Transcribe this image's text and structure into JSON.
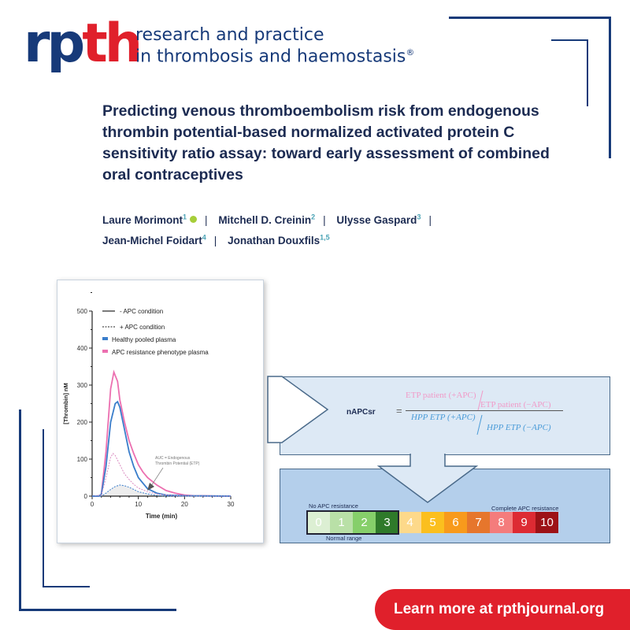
{
  "journal": {
    "logo_rp": "rp",
    "logo_th": "th",
    "name_line1": "research and practice",
    "name_line2": "in thrombosis and haemostasis",
    "registered": "®"
  },
  "article": {
    "title": "Predicting venous thromboembolism risk from endogenous thrombin potential-based normalized activated protein C sensitivity ratio assay: toward early assessment of combined oral contraceptives",
    "authors": [
      {
        "name": "Laure Morimont",
        "aff": "1",
        "orcid": true
      },
      {
        "name": "Mitchell D. Creinin",
        "aff": "2"
      },
      {
        "name": "Ulysse Gaspard",
        "aff": "3"
      },
      {
        "name": "Jean-Michel Foidart",
        "aff": "4"
      },
      {
        "name": "Jonathan Douxfils",
        "aff": "1,5"
      }
    ],
    "separator": "|"
  },
  "chart_data": {
    "type": "line",
    "xlabel": "Time (min)",
    "ylabel": "[Thrombin] nM",
    "xlim": [
      0,
      30
    ],
    "ylim": [
      0,
      500
    ],
    "xticks": [
      0,
      10,
      20,
      30
    ],
    "yticks": [
      0,
      100,
      200,
      300,
      400,
      500
    ],
    "legend_position": "top-left",
    "legend": [
      "- APC condition",
      "+ APC condition",
      "Healthy pooled plasma",
      "APC resistance phenotype plasma"
    ],
    "annotation": [
      "AUC = Endogenous",
      "Thrombin Potential (ETP)"
    ],
    "series": [
      {
        "plasma": "APC resistance phenotype plasma",
        "condition": "- APC condition",
        "color": "#ec6fb0",
        "dash": false,
        "x": [
          0,
          1.5,
          2,
          3,
          4,
          4.7,
          5.5,
          6,
          7,
          8,
          9,
          10,
          11,
          12,
          14,
          16,
          18,
          20,
          22,
          30
        ],
        "y": [
          0,
          0,
          5,
          120,
          290,
          335,
          310,
          260,
          200,
          150,
          115,
          85,
          65,
          50,
          30,
          15,
          8,
          3,
          1,
          0
        ]
      },
      {
        "plasma": "Healthy pooled plasma",
        "condition": "- APC condition",
        "color": "#3a7ecb",
        "dash": false,
        "x": [
          0,
          1.5,
          2,
          3,
          4,
          5,
          5.5,
          6,
          7,
          8,
          9,
          10,
          11,
          12,
          14,
          16,
          20,
          30
        ],
        "y": [
          0,
          0,
          5,
          80,
          200,
          250,
          255,
          240,
          180,
          120,
          80,
          50,
          35,
          20,
          8,
          3,
          1,
          0
        ]
      },
      {
        "plasma": "APC resistance phenotype plasma",
        "condition": "+ APC condition",
        "color": "#d98ac0",
        "dash": true,
        "x": [
          0,
          2,
          3,
          4,
          4.5,
          5,
          6,
          7,
          8,
          9,
          10,
          12,
          14,
          16,
          20,
          30
        ],
        "y": [
          0,
          3,
          50,
          105,
          115,
          110,
          85,
          60,
          45,
          32,
          22,
          12,
          6,
          3,
          0,
          0
        ]
      },
      {
        "plasma": "Healthy pooled plasma",
        "condition": "+ APC condition",
        "color": "#3a7ecb",
        "dash": true,
        "x": [
          0,
          2,
          3,
          4,
          5,
          6,
          7,
          8,
          9,
          10,
          12,
          14,
          16,
          30
        ],
        "y": [
          0,
          0,
          8,
          18,
          26,
          30,
          28,
          24,
          18,
          12,
          6,
          2,
          0,
          0
        ]
      }
    ]
  },
  "formula": {
    "lhs": "nAPCsr",
    "eq": "=",
    "num_top": "ETP patient (+APC)",
    "num_bottom": "ETP patient (−APC)",
    "den_top": "HPP ETP (+APC)",
    "den_bottom": "HPP ETP (−APC)",
    "slash": "/"
  },
  "scale": {
    "left_label": "No APC resistance",
    "right_label": "Complete APC resistance",
    "normal_label": "Normal range",
    "values": [
      "0",
      "1",
      "2",
      "3",
      "4",
      "5",
      "6",
      "7",
      "8",
      "9",
      "10"
    ],
    "colors": [
      "#dcefd3",
      "#b9e0a7",
      "#86cf6a",
      "#2f7a2a",
      "#fdd98a",
      "#fbbf1e",
      "#f89a1c",
      "#e6762c",
      "#f47c7c",
      "#dd2b33",
      "#9d1216"
    ]
  },
  "banner": {
    "text": "Learn more at rpthjournal.org"
  }
}
